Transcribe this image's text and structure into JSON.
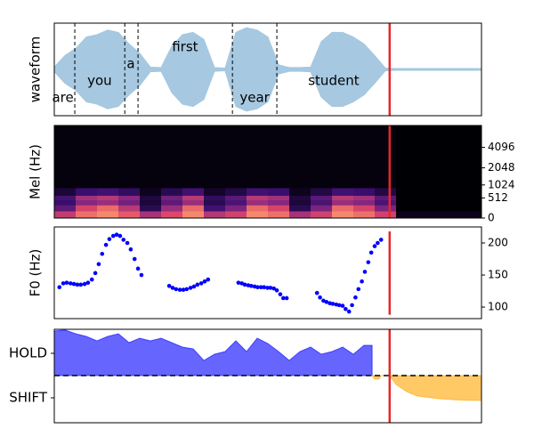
{
  "chart_data": [
    {
      "type": "waveform",
      "ylabel": "waveform",
      "xlim": [
        0,
        100
      ],
      "ylim": [
        -1,
        1
      ],
      "color": "#a6c8e0",
      "x": [
        0,
        2.5,
        5,
        7.5,
        10,
        12.5,
        15,
        17.5,
        20,
        22.5,
        25,
        27.5,
        30,
        32.5,
        35,
        37.5,
        40,
        42.5,
        45,
        47.5,
        50,
        52.5,
        55,
        57.5,
        60,
        62.5,
        65,
        67.5,
        70,
        72.5,
        75,
        77.5,
        80,
        82.5,
        85,
        87.5,
        90,
        92.5,
        95,
        97.5,
        100
      ],
      "envelope": [
        0.05,
        0.3,
        0.45,
        0.7,
        0.75,
        0.85,
        0.8,
        0.55,
        0.35,
        0.05,
        0.04,
        0.5,
        0.75,
        0.8,
        0.65,
        0.04,
        0.03,
        0.8,
        0.9,
        0.85,
        0.7,
        0.1,
        0.04,
        0.04,
        0.05,
        0.6,
        0.8,
        0.8,
        0.7,
        0.55,
        0.3,
        0.03,
        0.02,
        0.02,
        0.02,
        0.02,
        0.02,
        0.02,
        0.02,
        0.02,
        0.02
      ],
      "words": [
        {
          "text": "are",
          "x": 2,
          "y": -0.62
        },
        {
          "text": "you",
          "x": 10.6,
          "y": -0.25
        },
        {
          "text": "a",
          "x": 17.9,
          "y": 0.12
        },
        {
          "text": "first",
          "x": 30.6,
          "y": 0.48
        },
        {
          "text": "year",
          "x": 46.9,
          "y": -0.62
        },
        {
          "text": "student",
          "x": 65.4,
          "y": -0.25
        }
      ],
      "boundaries": [
        4.8,
        16.5,
        19.6,
        41.7,
        52.1
      ],
      "cursor": {
        "x": 78.5,
        "color": "#e8262a"
      }
    },
    {
      "type": "heatmap",
      "ylabel": "Mel (Hz)",
      "xlim": [
        0,
        100
      ],
      "ylim": [
        0,
        8000
      ],
      "yscale": "mel",
      "yticks": [
        0,
        512,
        1024,
        2048,
        4096
      ],
      "xedges": [
        0,
        5,
        10,
        15,
        20,
        25,
        30,
        35,
        40,
        45,
        50,
        55,
        60,
        65,
        70,
        75,
        80,
        85,
        90,
        95,
        100
      ],
      "yedges": [
        0,
        150,
        300,
        450,
        600,
        900,
        8000
      ],
      "z": [
        [
          0.66,
          0.82,
          0.86,
          0.78,
          0.58,
          0.74,
          0.86,
          0.62,
          0.7,
          0.86,
          0.82,
          0.58,
          0.7,
          0.86,
          0.82,
          0.7,
          0.05,
          0.05,
          0.05,
          0.05
        ],
        [
          0.36,
          0.72,
          0.81,
          0.63,
          0.18,
          0.54,
          0.81,
          0.27,
          0.45,
          0.81,
          0.72,
          0.18,
          0.45,
          0.81,
          0.72,
          0.45,
          0,
          0,
          0,
          0
        ],
        [
          0.24,
          0.48,
          0.54,
          0.42,
          0.12,
          0.36,
          0.54,
          0.18,
          0.3,
          0.54,
          0.48,
          0.12,
          0.3,
          0.54,
          0.48,
          0.3,
          0,
          0,
          0,
          0
        ],
        [
          0.28,
          0.56,
          0.63,
          0.49,
          0.14,
          0.42,
          0.63,
          0.21,
          0.35,
          0.63,
          0.56,
          0.14,
          0.35,
          0.63,
          0.56,
          0.35,
          0,
          0,
          0,
          0
        ],
        [
          0.12,
          0.24,
          0.27,
          0.21,
          0.06,
          0.18,
          0.27,
          0.09,
          0.15,
          0.27,
          0.24,
          0.06,
          0.15,
          0.27,
          0.24,
          0.15,
          0,
          0,
          0,
          0
        ],
        [
          0.02,
          0.02,
          0.02,
          0.02,
          0.02,
          0.02,
          0.02,
          0.02,
          0.02,
          0.02,
          0.02,
          0.02,
          0.02,
          0.02,
          0.02,
          0.02,
          0,
          0,
          0,
          0
        ]
      ],
      "cursor": {
        "x": 78.5,
        "color": "#e8262a"
      }
    },
    {
      "type": "scatter",
      "ylabel": "F0 (Hz)",
      "xlim": [
        0,
        100
      ],
      "ylim": [
        82,
        225
      ],
      "yticks": [
        100,
        150,
        200
      ],
      "color": "#0000ff",
      "x": [
        1.2,
        2.1,
        2.9,
        3.8,
        4.6,
        5.4,
        6.2,
        7.1,
        7.9,
        8.8,
        9.6,
        10.4,
        11.2,
        12.1,
        12.9,
        13.8,
        14.6,
        15.4,
        16.2,
        17.1,
        17.9,
        18.8,
        19.6,
        20.4,
        26.9,
        27.7,
        28.5,
        29.4,
        30.2,
        31.0,
        31.9,
        32.7,
        33.5,
        34.4,
        35.2,
        36.0,
        43.1,
        43.9,
        44.6,
        45.4,
        46.1,
        46.9,
        47.6,
        48.4,
        49.1,
        49.9,
        50.6,
        51.4,
        52.1,
        52.9,
        53.6,
        54.4,
        61.5,
        62.2,
        63.0,
        63.7,
        64.5,
        65.2,
        66.0,
        66.7,
        67.5,
        68.2,
        69.0,
        69.7,
        70.5,
        71.2,
        72.0,
        72.7,
        73.5,
        74.2,
        75.0,
        75.7,
        76.5
      ],
      "values": [
        131,
        137,
        138,
        137,
        136,
        135,
        135,
        136,
        138,
        143,
        153,
        167,
        183,
        197,
        206,
        211,
        213,
        211,
        205,
        200,
        190,
        175,
        160,
        150,
        133,
        130,
        128,
        127,
        127,
        128,
        130,
        132,
        135,
        137,
        140,
        143,
        138,
        137,
        135,
        134,
        133,
        132,
        131,
        131,
        131,
        130,
        130,
        129,
        126,
        120,
        114,
        114,
        122,
        115,
        110,
        108,
        106,
        105,
        104,
        103,
        102,
        97,
        93,
        103,
        115,
        128,
        140,
        155,
        170,
        185,
        195,
        200,
        205
      ],
      "cursor": {
        "x": 78.5,
        "color": "#e8262a",
        "ymin": 88,
        "ymax": 218
      }
    },
    {
      "type": "area",
      "xlim": [
        0,
        100
      ],
      "ylim": [
        -2.12,
        2.08
      ],
      "yticks": [
        {
          "value": 1,
          "label": "HOLD"
        },
        {
          "value": -1,
          "label": "SHIFT"
        }
      ],
      "hline": 0,
      "series": [
        {
          "color": "#0000ff",
          "alpha": 0.6,
          "x": [
            0,
            2.5,
            5,
            7.5,
            10,
            12.5,
            15,
            17.5,
            20,
            22.5,
            25,
            27.5,
            30,
            32.5,
            35,
            37.5,
            40,
            42.5,
            45,
            47.5,
            50,
            52.5,
            55,
            57.5,
            60,
            62.5,
            65,
            67.5,
            70,
            72.5,
            74.4
          ],
          "values": [
            2.0,
            2.05,
            1.88,
            1.76,
            1.56,
            1.76,
            1.88,
            1.48,
            1.68,
            1.56,
            1.68,
            1.48,
            1.28,
            1.2,
            0.68,
            0.96,
            1.08,
            1.56,
            1.08,
            1.68,
            1.44,
            1.08,
            0.68,
            1.08,
            1.28,
            0.96,
            1.08,
            1.28,
            0.96,
            1.36,
            1.36
          ]
        },
        {
          "color": "#ffa500",
          "alpha": 0.6,
          "x": [
            74.4,
            75,
            76,
            76.5,
            78.5,
            80,
            82.5,
            85,
            90,
            95,
            100
          ],
          "values": [
            0,
            -0.16,
            -0.16,
            0,
            0,
            -0.4,
            -0.72,
            -0.92,
            -1.04,
            -1.1,
            -1.12
          ]
        }
      ],
      "cursor": {
        "x": 78.5,
        "color": "#e8262a"
      }
    }
  ]
}
